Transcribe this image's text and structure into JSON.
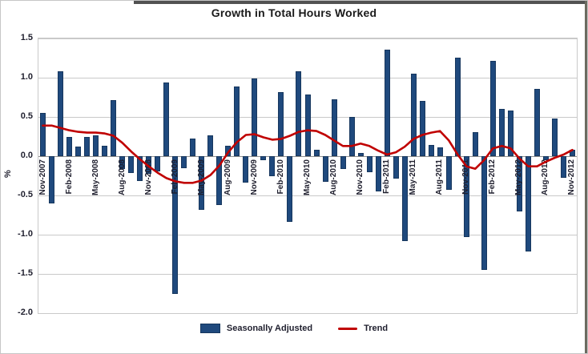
{
  "frame": {
    "background": "#ffffff",
    "border_color": "#c6c6c6",
    "shadow_color": "#525252"
  },
  "chart_data": {
    "type": "bar",
    "title": "Growth in Total Hours Worked",
    "xlabel": "",
    "ylabel": "%",
    "ylim": [
      -2.0,
      1.5
    ],
    "grid": true,
    "legend_position": "bottom",
    "frequency": "monthly",
    "x_range": [
      "Nov-2007",
      "Nov-2012"
    ],
    "x_tick_labels": [
      "Nov-2007",
      "Feb-2008",
      "May-2008",
      "Aug-2008",
      "Nov-2008",
      "Feb-2009",
      "May-2009",
      "Aug-2009",
      "Nov-2009",
      "Feb-2010",
      "May-2010",
      "Aug-2010",
      "Nov-2010",
      "Feb-2011",
      "May-2011",
      "Aug-2011",
      "Nov-2011",
      "Feb-2012",
      "May-2012",
      "Aug-2012",
      "Nov-2012"
    ],
    "x_tick_every": 3,
    "y_tick_labels": [
      "1.5",
      "1.0",
      "0.5",
      "0.0",
      "-0.5",
      "-1.0",
      "-1.5",
      "-2.0"
    ],
    "series": [
      {
        "name": "Seasonally Adjusted",
        "type": "bar",
        "color": "#1F497D",
        "values": [
          0.55,
          -0.6,
          1.08,
          0.24,
          0.12,
          0.25,
          0.27,
          0.13,
          0.71,
          -0.16,
          -0.21,
          -0.32,
          -0.22,
          -0.19,
          0.94,
          -1.75,
          -0.15,
          0.22,
          -0.68,
          0.27,
          -0.62,
          0.13,
          0.89,
          -0.34,
          0.99,
          -0.05,
          -0.26,
          0.82,
          -0.84,
          1.08,
          0.79,
          0.08,
          -0.33,
          0.72,
          -0.16,
          0.5,
          0.04,
          -0.2,
          -0.45,
          1.36,
          -0.29,
          -1.08,
          1.05,
          0.7,
          0.14,
          0.11,
          -0.43,
          1.26,
          -1.03,
          0.31,
          -1.45,
          1.21,
          0.6,
          0.58,
          -0.7,
          -1.21,
          0.86,
          -0.05,
          0.48,
          -0.28,
          0.08
        ]
      },
      {
        "name": "Trend",
        "type": "line",
        "color": "#C00000",
        "values": [
          0.39,
          0.39,
          0.36,
          0.33,
          0.31,
          0.3,
          0.3,
          0.29,
          0.26,
          0.17,
          0.06,
          -0.04,
          -0.13,
          -0.21,
          -0.28,
          -0.32,
          -0.34,
          -0.34,
          -0.31,
          -0.24,
          -0.12,
          0.05,
          0.18,
          0.27,
          0.28,
          0.24,
          0.21,
          0.22,
          0.26,
          0.31,
          0.33,
          0.32,
          0.27,
          0.2,
          0.13,
          0.13,
          0.16,
          0.13,
          0.07,
          0.02,
          0.05,
          0.12,
          0.22,
          0.27,
          0.3,
          0.32,
          0.2,
          0.02,
          -0.13,
          -0.16,
          -0.05,
          0.1,
          0.13,
          0.1,
          -0.03,
          -0.13,
          -0.13,
          -0.07,
          -0.02,
          0.02,
          0.08
        ]
      }
    ]
  }
}
